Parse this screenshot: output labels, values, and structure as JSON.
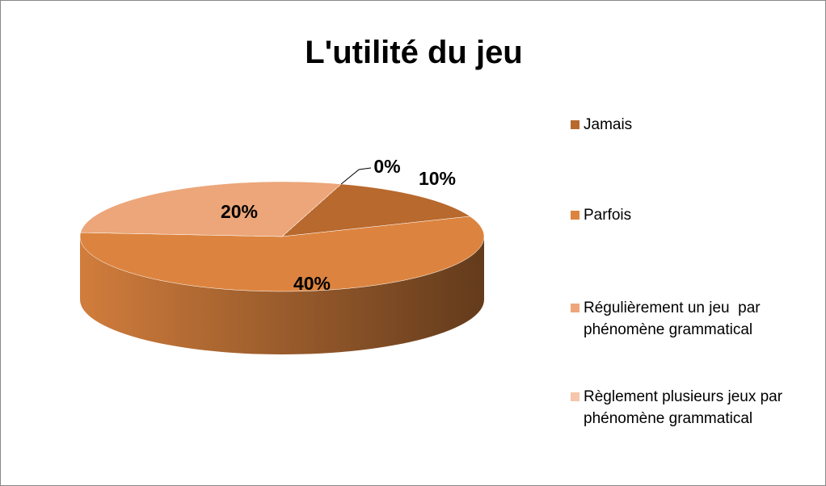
{
  "chart_data": {
    "type": "pie",
    "title": "L'utilité du jeu",
    "categories": [
      "Jamais",
      "Parfois",
      "Régulièrement un jeu  par phénomène grammatical",
      "Règlement plusieurs jeux par phénomène grammatical"
    ],
    "values": [
      10,
      40,
      20,
      0
    ],
    "value_labels": [
      "10%",
      "40%",
      "20%",
      "0%"
    ],
    "colors": [
      "#b8692e",
      "#dc843f",
      "#eca679",
      "#f5c6ab"
    ],
    "legend": "right"
  }
}
